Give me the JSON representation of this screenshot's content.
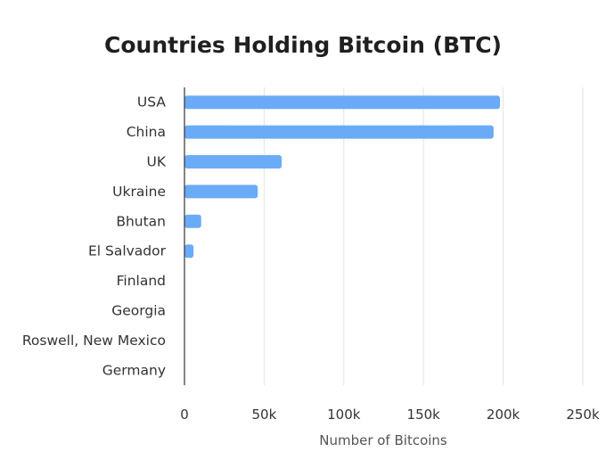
{
  "chart_data": {
    "type": "bar",
    "orientation": "horizontal",
    "title": "Countries Holding Bitcoin (BTC)",
    "xlabel": "Number of Bitcoins",
    "ylabel": "",
    "categories": [
      "USA",
      "China",
      "UK",
      "Ukraine",
      "Bhutan",
      "El Salvador",
      "Finland",
      "Georgia",
      "Roswell, New Mexico",
      "Germany"
    ],
    "values": [
      198000,
      194000,
      61000,
      46000,
      10500,
      5700,
      0,
      0,
      0,
      0
    ],
    "xlim": [
      0,
      250000
    ],
    "xticks": [
      0,
      50000,
      100000,
      150000,
      200000,
      250000
    ],
    "xtick_labels": [
      "0",
      "50k",
      "100k",
      "150k",
      "200k",
      "250k"
    ],
    "grid": true,
    "bar_color": "#6aabf7"
  }
}
